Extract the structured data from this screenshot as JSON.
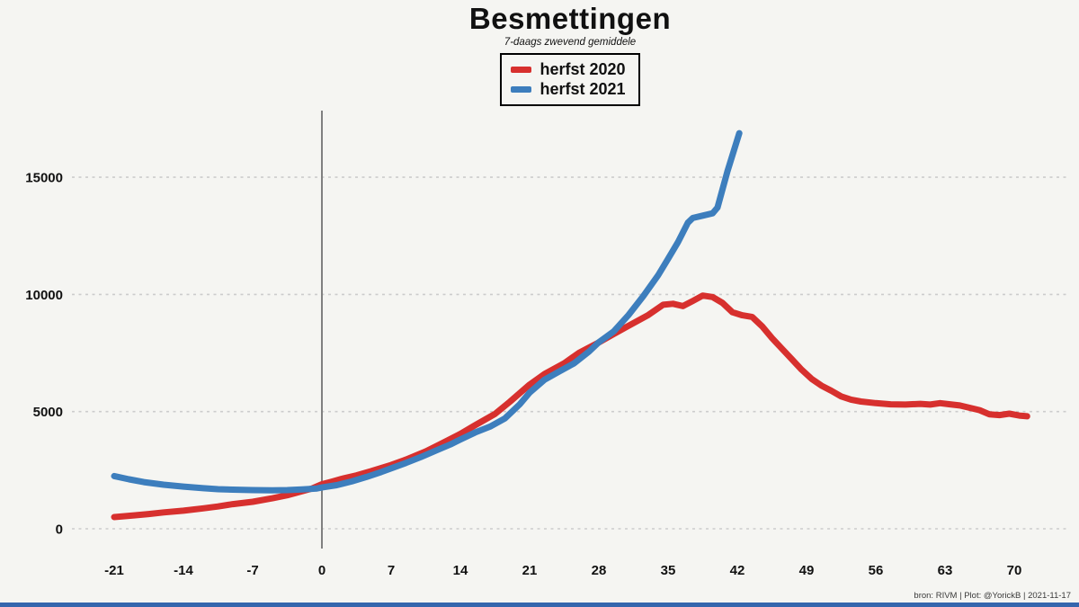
{
  "title": "Besmettingen",
  "subtitle": "7-daags zwevend gemiddele",
  "legend": {
    "position": "top-center",
    "items": [
      {
        "label": "herfst 2020",
        "color": "#d7302e"
      },
      {
        "label": "herfst 2021",
        "color": "#3d7ebd"
      }
    ]
  },
  "footer": {
    "credit": "bron: RIVM  | Plot: @YorickB |  2021-11-17"
  },
  "colors": {
    "background": "#f5f5f2",
    "gridline": "#cccccc",
    "zero_line": "#808080",
    "tick_label": "#111111",
    "accent_bar": "#3566ad",
    "herfst_2020": "#d7302e",
    "herfst_2021": "#3d7ebd"
  },
  "chart_data": {
    "type": "line",
    "title": "Besmettingen",
    "subtitle": "7-daags zwevend gemiddele",
    "xlabel": "",
    "ylabel": "",
    "x_ticks": [
      -21,
      -14,
      -7,
      0,
      7,
      14,
      21,
      28,
      35,
      42,
      49,
      56,
      63,
      70
    ],
    "y_ticks": [
      0,
      5000,
      10000,
      15000
    ],
    "xlim": [
      -25,
      75
    ],
    "ylim": [
      0,
      17000
    ],
    "grid": "horizontal-dashed",
    "vline_x": 0,
    "legend_position": "top-center",
    "series": [
      {
        "name": "herfst 2020",
        "color": "#d7302e",
        "points": [
          [
            -21,
            500
          ],
          [
            -19,
            570
          ],
          [
            -17.5,
            630
          ],
          [
            -16,
            700
          ],
          [
            -14,
            770
          ],
          [
            -12,
            870
          ],
          [
            -10.5,
            950
          ],
          [
            -9,
            1050
          ],
          [
            -7,
            1150
          ],
          [
            -5,
            1300
          ],
          [
            -3.5,
            1430
          ],
          [
            -2,
            1600
          ],
          [
            -1,
            1720
          ],
          [
            0,
            1900
          ],
          [
            1,
            2010
          ],
          [
            2,
            2130
          ],
          [
            3.5,
            2280
          ],
          [
            5,
            2460
          ],
          [
            7,
            2720
          ],
          [
            8.5,
            2950
          ],
          [
            10.5,
            3300
          ],
          [
            12,
            3620
          ],
          [
            14,
            4050
          ],
          [
            15.5,
            4420
          ],
          [
            17.5,
            4900
          ],
          [
            19,
            5420
          ],
          [
            21,
            6150
          ],
          [
            22.5,
            6600
          ],
          [
            24.5,
            7060
          ],
          [
            26,
            7510
          ],
          [
            28,
            7950
          ],
          [
            29.5,
            8310
          ],
          [
            31,
            8660
          ],
          [
            33,
            9120
          ],
          [
            34.5,
            9560
          ],
          [
            35.5,
            9600
          ],
          [
            36.5,
            9500
          ],
          [
            37.5,
            9720
          ],
          [
            38.5,
            9950
          ],
          [
            39.5,
            9890
          ],
          [
            40.5,
            9640
          ],
          [
            41.5,
            9240
          ],
          [
            42.5,
            9110
          ],
          [
            43.5,
            9040
          ],
          [
            44.5,
            8640
          ],
          [
            45.5,
            8140
          ],
          [
            46.5,
            7690
          ],
          [
            47.5,
            7240
          ],
          [
            48.5,
            6790
          ],
          [
            49.5,
            6400
          ],
          [
            50.5,
            6110
          ],
          [
            51.5,
            5890
          ],
          [
            52.5,
            5650
          ],
          [
            53.5,
            5510
          ],
          [
            54.5,
            5430
          ],
          [
            56,
            5360
          ],
          [
            57.5,
            5310
          ],
          [
            59,
            5300
          ],
          [
            60.5,
            5330
          ],
          [
            61.5,
            5300
          ],
          [
            62.5,
            5360
          ],
          [
            63.5,
            5310
          ],
          [
            64.5,
            5260
          ],
          [
            65.5,
            5160
          ],
          [
            66.5,
            5060
          ],
          [
            67.5,
            4880
          ],
          [
            68.5,
            4850
          ],
          [
            69.5,
            4910
          ],
          [
            70.5,
            4830
          ],
          [
            71.3,
            4800
          ]
        ]
      },
      {
        "name": "herfst 2021",
        "color": "#3d7ebd",
        "points": [
          [
            -21,
            2250
          ],
          [
            -19.5,
            2110
          ],
          [
            -18,
            1990
          ],
          [
            -16,
            1880
          ],
          [
            -14,
            1800
          ],
          [
            -12,
            1730
          ],
          [
            -10.5,
            1690
          ],
          [
            -9,
            1670
          ],
          [
            -7,
            1650
          ],
          [
            -5,
            1640
          ],
          [
            -3.5,
            1650
          ],
          [
            -2,
            1680
          ],
          [
            -0.5,
            1720
          ],
          [
            0,
            1760
          ],
          [
            1.5,
            1860
          ],
          [
            3,
            2020
          ],
          [
            4.5,
            2210
          ],
          [
            6,
            2420
          ],
          [
            7,
            2580
          ],
          [
            8.5,
            2810
          ],
          [
            10,
            3060
          ],
          [
            11.5,
            3330
          ],
          [
            13,
            3600
          ],
          [
            14,
            3810
          ],
          [
            15.5,
            4110
          ],
          [
            17,
            4360
          ],
          [
            18.5,
            4710
          ],
          [
            20,
            5310
          ],
          [
            21,
            5810
          ],
          [
            22.5,
            6360
          ],
          [
            24,
            6710
          ],
          [
            25.5,
            7060
          ],
          [
            27,
            7560
          ],
          [
            28,
            7960
          ],
          [
            29.5,
            8420
          ],
          [
            31,
            9120
          ],
          [
            32.5,
            9930
          ],
          [
            34,
            10820
          ],
          [
            35,
            11520
          ],
          [
            36,
            12230
          ],
          [
            37,
            13060
          ],
          [
            37.5,
            13260
          ],
          [
            38.5,
            13360
          ],
          [
            39.5,
            13460
          ],
          [
            40,
            13710
          ],
          [
            41,
            15250
          ],
          [
            42.2,
            16880
          ]
        ]
      }
    ]
  }
}
